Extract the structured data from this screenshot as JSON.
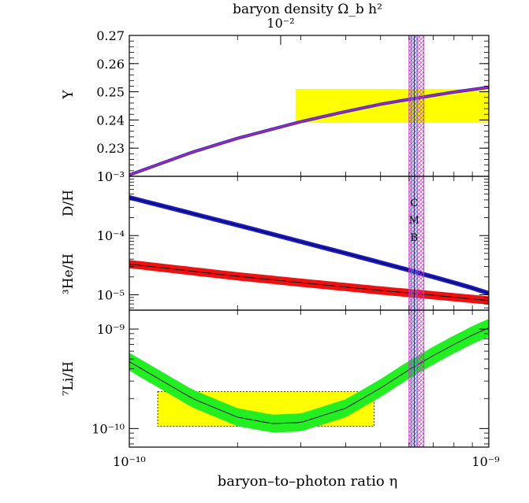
{
  "chart_data": {
    "type": "line",
    "title": "baryon density Ω_b h²",
    "top_axis_tick_label": "10⁻²",
    "xlabel": "baryon–to–photon ratio η",
    "xscale": "log",
    "xlim": [
      1e-10,
      1e-09
    ],
    "x_tick_labels": [
      "10⁻¹⁰",
      "10⁻⁹"
    ],
    "cmb_band": {
      "label_letters": [
        "C",
        "M",
        "B"
      ],
      "x_range": [
        6e-10,
        6.6e-10
      ],
      "x_center": 6.2e-10,
      "colors": [
        "#cc33cc",
        "#4466ff",
        "#33aaff"
      ]
    },
    "panels": [
      {
        "id": "Y",
        "ylabel": "Y",
        "yscale": "linear",
        "ylim": [
          0.22,
          0.27
        ],
        "y_tick_labels": [
          "0.23",
          "0.24",
          "0.25",
          "0.26",
          "0.27"
        ],
        "y_ticks": [
          0.23,
          0.24,
          0.25,
          0.26,
          0.27
        ],
        "observation_box": {
          "x_range": [
            2.9e-10,
            1e-09
          ],
          "y_range": [
            0.239,
            0.251
          ],
          "color": "#ffff00"
        },
        "series": [
          {
            "color": "#aa22bb",
            "band_color": "#2233aa",
            "x": [
              1e-10,
              1.5e-10,
              2e-10,
              3e-10,
              4e-10,
              5e-10,
              6e-10,
              7e-10,
              8e-10,
              9e-10,
              1e-09
            ],
            "y": [
              0.2205,
              0.2286,
              0.2335,
              0.2394,
              0.243,
              0.2456,
              0.2473,
              0.2487,
              0.2499,
              0.2508,
              0.2516
            ]
          }
        ]
      },
      {
        "id": "DHe",
        "ylabel_top": "D/H",
        "ylabel_bottom": "³He/H",
        "yscale": "log",
        "ylim": [
          5.5e-06,
          0.001
        ],
        "y_tick_labels": [
          "10⁻³",
          "10⁻⁴",
          "10⁻⁵"
        ],
        "y_ticks": [
          0.001,
          0.0001,
          1e-05
        ],
        "series": [
          {
            "color": "#1a1acc",
            "band_halfwidth_dex": 0.04,
            "x": [
              1e-10,
              2e-10,
              3e-10,
              4e-10,
              5e-10,
              6e-10,
              7e-10,
              8e-10,
              9e-10,
              1e-09
            ],
            "y": [
              0.00044,
              0.00015,
              7.9e-05,
              5e-05,
              3.5e-05,
              2.6e-05,
              2e-05,
              1.6e-05,
              1.3e-05,
              1.06e-05
            ]
          },
          {
            "color": "#ee1111",
            "band_halfwidth_dex": 0.07,
            "x": [
              1e-10,
              2e-10,
              3e-10,
              4e-10,
              5e-10,
              6e-10,
              7e-10,
              8e-10,
              9e-10,
              1e-09
            ],
            "y": [
              3.3e-05,
              2.05e-05,
              1.6e-05,
              1.35e-05,
              1.18e-05,
              1.07e-05,
              9.8e-06,
              9.1e-06,
              8.5e-06,
              8e-06
            ]
          }
        ]
      },
      {
        "id": "Li",
        "ylabel": "⁷Li/H",
        "yscale": "log",
        "ylim": [
          6.5e-11,
          1.55e-09
        ],
        "y_tick_labels": [
          "10⁻⁹",
          "10⁻¹⁰"
        ],
        "y_ticks": [
          1e-09,
          1e-10
        ],
        "observation_box": {
          "x_range": [
            1.2e-10,
            4.8e-10
          ],
          "y_range": [
            1.05e-10,
            2.35e-10
          ],
          "color": "#ffff00"
        },
        "series": [
          {
            "color": "#22ee22",
            "band_halfwidth_dex": 0.09,
            "x": [
              1e-10,
              1.2e-10,
              1.5e-10,
              2e-10,
              2.5e-10,
              3e-10,
              4e-10,
              5e-10,
              6e-10,
              7e-10,
              8e-10,
              9e-10,
              1e-09
            ],
            "y": [
              4.7e-10,
              3.2e-10,
              2e-10,
              1.3e-10,
              1.12e-10,
              1.15e-10,
              1.6e-10,
              2.55e-10,
              3.9e-10,
              5.4e-10,
              7e-10,
              8.7e-10,
              1.03e-09
            ]
          }
        ]
      }
    ]
  }
}
